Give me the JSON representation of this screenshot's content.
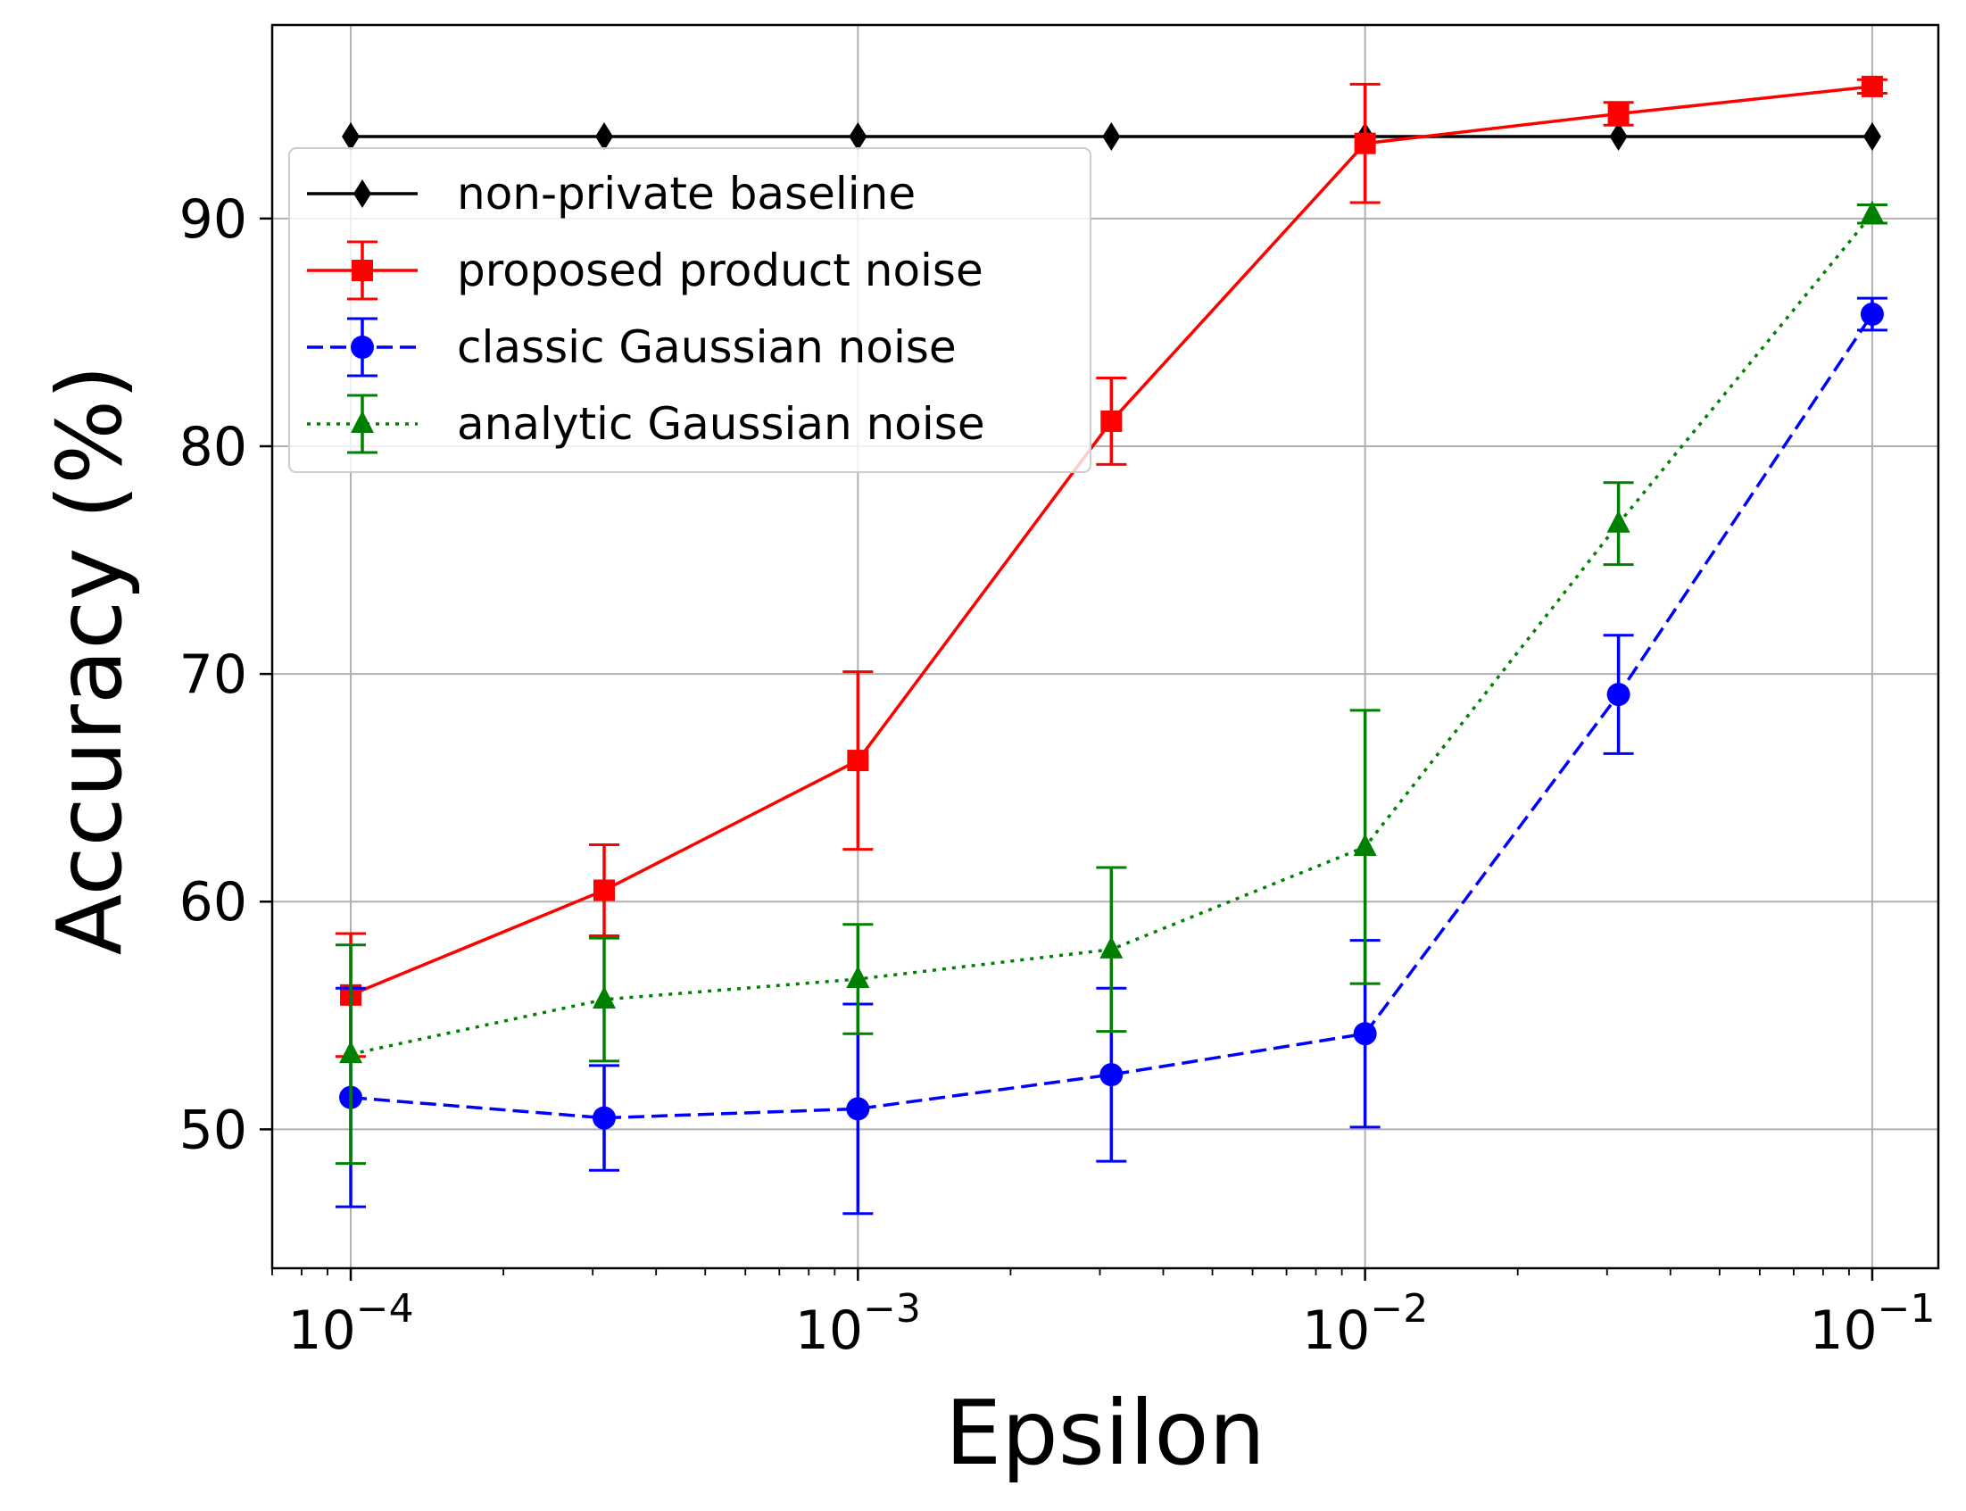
{
  "chart_data": {
    "type": "line",
    "title": "",
    "xlabel": "Epsilon",
    "ylabel": "Accuracy (%)",
    "xscale": "log",
    "xlim": [
      7e-05,
      0.135
    ],
    "ylim": [
      43.9,
      98.5
    ],
    "grid": true,
    "legend_position": "upper-left",
    "x_ticks": [
      {
        "value": 0.0001,
        "base": "10",
        "exp": "−4"
      },
      {
        "value": 0.001,
        "base": "10",
        "exp": "−3"
      },
      {
        "value": 0.01,
        "base": "10",
        "exp": "−2"
      },
      {
        "value": 0.1,
        "base": "10",
        "exp": "−1"
      }
    ],
    "y_ticks": [
      {
        "value": 50,
        "label": "50"
      },
      {
        "value": 60,
        "label": "60"
      },
      {
        "value": 70,
        "label": "70"
      },
      {
        "value": 80,
        "label": "80"
      },
      {
        "value": 90,
        "label": "90"
      }
    ],
    "x": [
      0.0001,
      0.000316,
      0.001,
      0.00316,
      0.01,
      0.0316,
      0.1
    ],
    "series": [
      {
        "name": "non-private baseline",
        "color": "#000000",
        "dash": "solid",
        "marker": "diamond",
        "values": [
          93.6,
          93.6,
          93.6,
          93.6,
          93.6,
          93.6,
          93.6
        ],
        "errors": null
      },
      {
        "name": "proposed product noise",
        "color": "#ff0000",
        "dash": "solid",
        "marker": "square",
        "values": [
          55.9,
          60.5,
          66.2,
          81.1,
          93.3,
          94.6,
          95.8
        ],
        "errors": [
          2.7,
          2.0,
          3.9,
          1.9,
          2.6,
          0.5,
          0.3
        ]
      },
      {
        "name": "classic Gaussian noise",
        "color": "#0000ff",
        "dash": "dashed",
        "marker": "circle",
        "values": [
          51.4,
          50.5,
          50.9,
          52.4,
          54.2,
          69.1,
          85.8
        ],
        "errors": [
          4.8,
          2.3,
          4.6,
          3.8,
          4.1,
          2.6,
          0.7
        ]
      },
      {
        "name": "analytic Gaussian noise",
        "color": "#008000",
        "dash": "dotted",
        "marker": "triangle",
        "values": [
          53.3,
          55.7,
          56.6,
          57.9,
          62.4,
          76.6,
          90.2
        ],
        "errors": [
          4.8,
          2.7,
          2.4,
          3.6,
          6.0,
          1.8,
          0.4
        ]
      }
    ]
  }
}
